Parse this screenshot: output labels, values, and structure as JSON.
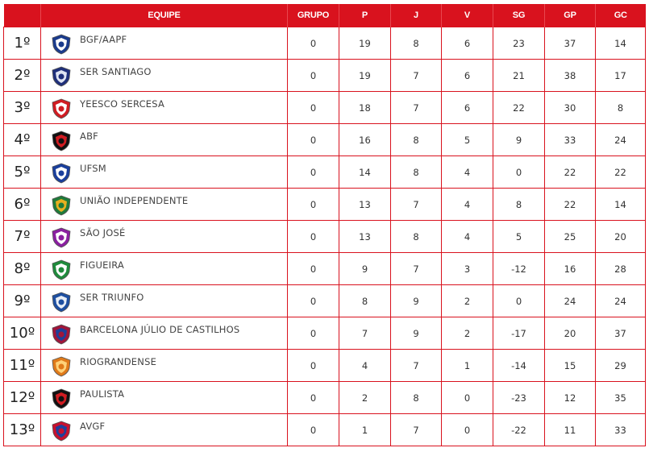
{
  "headers": {
    "pos": "",
    "equipe": "EQUIPE",
    "grupo": "GRUPO",
    "p": "P",
    "j": "J",
    "v": "V",
    "sg": "SG",
    "gp": "GP",
    "gc": "GC"
  },
  "rows": [
    {
      "pos": "1º",
      "team": "BGF/AAPF",
      "logo": "bgf-crest-icon",
      "grupo": "0",
      "p": "19",
      "j": "8",
      "v": "6",
      "sg": "23",
      "gp": "37",
      "gc": "14",
      "c1": "#1b3b8c",
      "c2": "#ffffff"
    },
    {
      "pos": "2º",
      "team": "SER SANTIAGO",
      "logo": "ser-santiago-crest-icon",
      "grupo": "0",
      "p": "19",
      "j": "7",
      "v": "6",
      "sg": "21",
      "gp": "38",
      "gc": "17",
      "c1": "#1f2f7a",
      "c2": "#dfe4f2"
    },
    {
      "pos": "3º",
      "team": "YEESCO SERCESA",
      "logo": "yeesco-crest-icon",
      "grupo": "0",
      "p": "18",
      "j": "7",
      "v": "6",
      "sg": "22",
      "gp": "30",
      "gc": "8",
      "c1": "#d01c22",
      "c2": "#ffffff"
    },
    {
      "pos": "4º",
      "team": "ABF",
      "logo": "abf-crest-icon",
      "grupo": "0",
      "p": "16",
      "j": "8",
      "v": "5",
      "sg": "9",
      "gp": "33",
      "gc": "24",
      "c1": "#111111",
      "c2": "#d01c22"
    },
    {
      "pos": "5º",
      "team": "UFSM",
      "logo": "ufsm-crest-icon",
      "grupo": "0",
      "p": "14",
      "j": "8",
      "v": "4",
      "sg": "0",
      "gp": "22",
      "gc": "22",
      "c1": "#1a3f9c",
      "c2": "#ffffff"
    },
    {
      "pos": "6º",
      "team": "UNIÃO INDEPENDENTE",
      "logo": "uniao-crest-icon",
      "grupo": "0",
      "p": "13",
      "j": "7",
      "v": "4",
      "sg": "8",
      "gp": "22",
      "gc": "14",
      "c1": "#1f7a3a",
      "c2": "#e8b020"
    },
    {
      "pos": "7º",
      "team": "SÃO JOSÉ",
      "logo": "sao-jose-crest-icon",
      "grupo": "0",
      "p": "13",
      "j": "8",
      "v": "4",
      "sg": "5",
      "gp": "25",
      "gc": "20",
      "c1": "#8a1fa0",
      "c2": "#ffffff"
    },
    {
      "pos": "8º",
      "team": "FIGUEIRA",
      "logo": "figueira-crest-icon",
      "grupo": "0",
      "p": "9",
      "j": "7",
      "v": "3",
      "sg": "-12",
      "gp": "16",
      "gc": "28",
      "c1": "#1f8a3c",
      "c2": "#ffffff"
    },
    {
      "pos": "9º",
      "team": "SER TRIUNFO",
      "logo": "ser-triunfo-crest-icon",
      "grupo": "0",
      "p": "8",
      "j": "9",
      "v": "2",
      "sg": "0",
      "gp": "24",
      "gc": "24",
      "c1": "#1e4fa0",
      "c2": "#e9eef6"
    },
    {
      "pos": "10º",
      "team": "BARCELONA JÚLIO DE CASTILHOS",
      "logo": "barcelona-crest-icon",
      "grupo": "0",
      "p": "7",
      "j": "9",
      "v": "2",
      "sg": "-17",
      "gp": "20",
      "gc": "37",
      "c1": "#a0163a",
      "c2": "#1d3f9a"
    },
    {
      "pos": "11º",
      "team": "RIOGRANDENSE",
      "logo": "riograndense-crest-icon",
      "grupo": "0",
      "p": "4",
      "j": "7",
      "v": "1",
      "sg": "-14",
      "gp": "15",
      "gc": "29",
      "c1": "#e07a1a",
      "c2": "#ffd27a"
    },
    {
      "pos": "12º",
      "team": "PAULISTA",
      "logo": "paulista-crest-icon",
      "grupo": "0",
      "p": "2",
      "j": "8",
      "v": "0",
      "sg": "-23",
      "gp": "12",
      "gc": "35",
      "c1": "#111111",
      "c2": "#d01c22"
    },
    {
      "pos": "13º",
      "team": "AVGF",
      "logo": "avgf-crest-icon",
      "grupo": "0",
      "p": "1",
      "j": "7",
      "v": "0",
      "sg": "-22",
      "gp": "11",
      "gc": "33",
      "c1": "#c8102e",
      "c2": "#1f3f9a"
    }
  ],
  "colors": {
    "header_bg": "#d9121e",
    "border": "#d9121e"
  }
}
